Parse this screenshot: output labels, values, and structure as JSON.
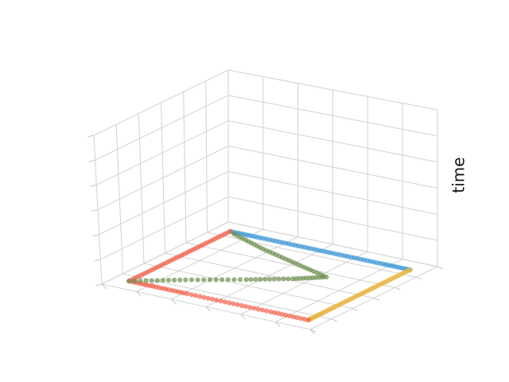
{
  "chart_data": {
    "type": "scatter",
    "projection": "3d",
    "title": "",
    "xlabel": "",
    "ylabel": "",
    "zlabel": "time",
    "grid": true,
    "tick_labels_visible": false,
    "series": [
      {
        "color": "#3a95d6",
        "points": [
          [
            0.07,
            0.9,
            0.0
          ],
          [
            0.2,
            0.9,
            0.0
          ],
          [
            0.35,
            0.9,
            0.0
          ],
          [
            0.5,
            0.9,
            0.0
          ],
          [
            0.65,
            0.9,
            0.0
          ],
          [
            0.8,
            0.9,
            0.0
          ],
          [
            0.93,
            0.9,
            0.0
          ]
        ]
      },
      {
        "color": "#e7b846",
        "points": [
          [
            0.93,
            0.9,
            0.0
          ],
          [
            0.93,
            0.75,
            0.0
          ],
          [
            0.93,
            0.6,
            0.0
          ],
          [
            0.93,
            0.45,
            0.0
          ],
          [
            0.93,
            0.3,
            0.0
          ],
          [
            0.93,
            0.18,
            0.0
          ],
          [
            0.93,
            0.1,
            0.0
          ]
        ]
      },
      {
        "color": "#f1624a",
        "points": [
          [
            0.93,
            0.1,
            0.0
          ],
          [
            0.75,
            0.1,
            0.0
          ],
          [
            0.55,
            0.1,
            0.0
          ],
          [
            0.35,
            0.1,
            0.0
          ],
          [
            0.2,
            0.1,
            0.0
          ],
          [
            0.07,
            0.1,
            0.0
          ],
          [
            0.07,
            0.3,
            0.0
          ],
          [
            0.07,
            0.5,
            0.0
          ],
          [
            0.07,
            0.7,
            0.0
          ],
          [
            0.07,
            0.9,
            0.0
          ]
        ]
      },
      {
        "color": "#6d8f4e",
        "points": [
          [
            0.07,
            0.1,
            0.0
          ],
          [
            0.25,
            0.25,
            0.0
          ],
          [
            0.45,
            0.4,
            0.0
          ],
          [
            0.6,
            0.52,
            0.0
          ],
          [
            0.7,
            0.62,
            0.0
          ],
          [
            0.5,
            0.7,
            0.0
          ],
          [
            0.3,
            0.78,
            0.0
          ],
          [
            0.1,
            0.88,
            0.0
          ]
        ]
      }
    ]
  }
}
